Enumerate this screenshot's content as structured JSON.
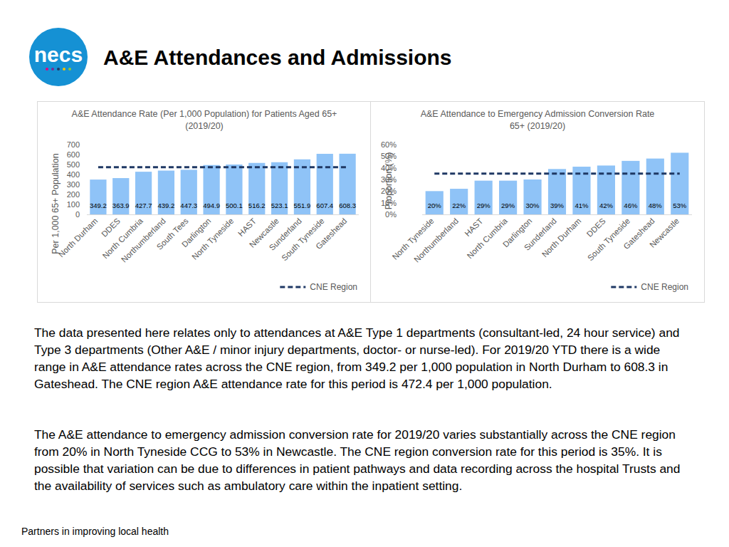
{
  "header": {
    "logo": "necs",
    "title": "A&E Attendances and Admissions"
  },
  "chart_data": [
    {
      "type": "bar",
      "title": "A&E Attendance Rate (Per 1,000 Population) for Patients Aged 65+ (2019/20)",
      "y_label": "Per 1,000 65+ Population",
      "categories": [
        "North Durham",
        "DDES",
        "North Cumbria",
        "Northumberland",
        "South Tees",
        "Darlington",
        "North Tyneside",
        "HAST",
        "Newcastle",
        "Sunderland",
        "South Tyneside",
        "Gateshead"
      ],
      "series": [
        {
          "color": "#8fc3f7",
          "values": [
            349.2,
            363.9,
            427.7,
            439.2,
            447.3,
            494.9,
            500.1,
            516.2,
            523.1,
            551.9,
            607.4,
            608.3
          ]
        },
        {
          "name": "CNE Region",
          "type": "line",
          "line_style": "dashed",
          "color": "#1f3864",
          "values": [
            472.4,
            472.4,
            472.4,
            472.4,
            472.4,
            472.4,
            472.4,
            472.4,
            472.4,
            472.4,
            472.4,
            472.4
          ]
        }
      ],
      "ylim": [
        0,
        700
      ],
      "yticks": [
        0,
        100,
        200,
        300,
        400,
        500,
        600,
        700
      ],
      "grid": false,
      "data_labels": true,
      "legend": "bottom-right"
    },
    {
      "type": "bar",
      "title": "A&E Attendance to Emergency Admission Conversion Rate 65+ (2019/20)",
      "y_label": "Proportion (%)",
      "categories": [
        "North Tyneside",
        "Northumberland",
        "HAST",
        "North Cumbria",
        "Darlington",
        "Sunderland",
        "North Durham",
        "DDES",
        "South Tyneside",
        "Gateshead",
        "Newcastle"
      ],
      "series": [
        {
          "color": "#8fc3f7",
          "values": [
            20,
            22,
            29,
            29,
            30,
            39,
            41,
            42,
            46,
            48,
            53
          ],
          "value_labels": [
            "20%",
            "22%",
            "29%",
            "29%",
            "30%",
            "39%",
            "41%",
            "42%",
            "46%",
            "48%",
            "53%"
          ]
        },
        {
          "name": "CNE Region",
          "type": "line",
          "line_style": "dashed",
          "color": "#1f3864",
          "values": [
            35,
            35,
            35,
            35,
            35,
            35,
            35,
            35,
            35,
            35,
            35
          ]
        }
      ],
      "ylim": [
        0,
        60
      ],
      "yticks": [
        {
          "value": 0,
          "label": "0%"
        },
        {
          "value": 10,
          "label": "10%"
        },
        {
          "value": 20,
          "label": "20%"
        },
        {
          "value": 30,
          "label": "30%"
        },
        {
          "value": 40,
          "label": "40%"
        },
        {
          "value": 50,
          "label": "50%"
        },
        {
          "value": 60,
          "label": "60%"
        }
      ],
      "grid": false,
      "data_labels": true,
      "legend": "bottom-right"
    }
  ],
  "text": {
    "paragraphs": [
      "The data presented here relates only to attendances at A&E Type 1 departments (consultant-led, 24 hour service) and Type 3 departments (Other A&E / minor injury departments, doctor- or nurse-led). For 2019/20 YTD there is a wide range in A&E attendance rates across the CNE region, from 349.2 per 1,000 population in North Durham to 608.3 in Gateshead. The CNE region A&E attendance rate for this period is 472.4 per 1,000 population.",
      "The A&E attendance to emergency admission conversion rate for 2019/20 varies substantially across the CNE region from 20% in North Tyneside CCG to 53% in Newcastle. The CNE region conversion rate for this period is 35%.  It is possible that variation can be due to differences in patient pathways and data recording across the hospital Trusts and the availability of services such as ambulatory care within the inpatient setting."
    ],
    "footer": "Partners in improving local health"
  }
}
